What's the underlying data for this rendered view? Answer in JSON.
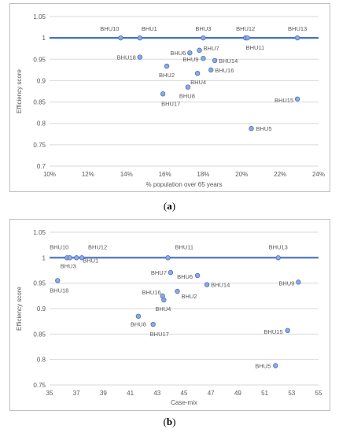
{
  "chart_data": [
    {
      "type": "scatter",
      "panel": "a",
      "xlabel": "% population over 65 years",
      "ylabel": "Efficiency score",
      "xlim": [
        10,
        24
      ],
      "ylim": [
        0.7,
        1.05
      ],
      "x_ticks": [
        "10%",
        "12%",
        "14%",
        "16%",
        "18%",
        "20%",
        "22%",
        "24%"
      ],
      "y_ticks": [
        "0.7",
        "0.75",
        "0.8",
        "0.85",
        "0.9",
        "0.95",
        "1",
        "1.05"
      ],
      "frontier": 1,
      "grid": "horizontal",
      "points": [
        {
          "label": "BHU10",
          "x": 13.7,
          "y": 1.0
        },
        {
          "label": "BHU1",
          "x": 14.7,
          "y": 1.0
        },
        {
          "label": "BHU3",
          "x": 18.0,
          "y": 1.0
        },
        {
          "label": "BHU12",
          "x": 20.2,
          "y": 1.0
        },
        {
          "label": "BHU11",
          "x": 20.3,
          "y": 1.0
        },
        {
          "label": "BHU13",
          "x": 22.9,
          "y": 1.0
        },
        {
          "label": "BHU18",
          "x": 14.7,
          "y": 0.955
        },
        {
          "label": "BHU6",
          "x": 17.3,
          "y": 0.965
        },
        {
          "label": "BHU7",
          "x": 17.8,
          "y": 0.971
        },
        {
          "label": "BHU9",
          "x": 18.0,
          "y": 0.952
        },
        {
          "label": "BHU14",
          "x": 18.6,
          "y": 0.947
        },
        {
          "label": "BHU2",
          "x": 16.1,
          "y": 0.934
        },
        {
          "label": "BHU16",
          "x": 18.4,
          "y": 0.925
        },
        {
          "label": "BHU4",
          "x": 17.7,
          "y": 0.917
        },
        {
          "label": "BHU8",
          "x": 17.2,
          "y": 0.885
        },
        {
          "label": "BHU17",
          "x": 15.9,
          "y": 0.869
        },
        {
          "label": "BHU15",
          "x": 22.9,
          "y": 0.857
        },
        {
          "label": "BHU5",
          "x": 20.5,
          "y": 0.788
        }
      ]
    },
    {
      "type": "scatter",
      "panel": "b",
      "xlabel": "Case-mix",
      "ylabel": "Efficiency score",
      "xlim": [
        35,
        55
      ],
      "ylim": [
        0.75,
        1.05
      ],
      "x_ticks": [
        "35",
        "37",
        "39",
        "41",
        "43",
        "45",
        "47",
        "49",
        "51",
        "53",
        "55"
      ],
      "y_ticks": [
        "0.75",
        "0.8",
        "0.85",
        "0.9",
        "0.95",
        "1",
        "1.05"
      ],
      "frontier": 1,
      "grid": "horizontal",
      "points": [
        {
          "label": "BHU10",
          "x": 36.3,
          "y": 1.0
        },
        {
          "label": "BHU3",
          "x": 36.5,
          "y": 1.0
        },
        {
          "label": "BHU1",
          "x": 37.0,
          "y": 1.0
        },
        {
          "label": "BHU12",
          "x": 37.4,
          "y": 1.0
        },
        {
          "label": "BHU11",
          "x": 43.8,
          "y": 1.0
        },
        {
          "label": "BHU13",
          "x": 52.0,
          "y": 1.0
        },
        {
          "label": "BHU18",
          "x": 35.6,
          "y": 0.955
        },
        {
          "label": "BHU7",
          "x": 44.0,
          "y": 0.971
        },
        {
          "label": "BHU6",
          "x": 46.0,
          "y": 0.965
        },
        {
          "label": "BHU9",
          "x": 53.5,
          "y": 0.952
        },
        {
          "label": "BHU14",
          "x": 46.7,
          "y": 0.947
        },
        {
          "label": "BHU2",
          "x": 44.5,
          "y": 0.934
        },
        {
          "label": "BHU16",
          "x": 43.4,
          "y": 0.925
        },
        {
          "label": "BHU4",
          "x": 43.5,
          "y": 0.917
        },
        {
          "label": "BHU8",
          "x": 41.6,
          "y": 0.885
        },
        {
          "label": "BHU17",
          "x": 42.7,
          "y": 0.869
        },
        {
          "label": "BHU15",
          "x": 52.7,
          "y": 0.857
        },
        {
          "label": "BHU5",
          "x": 51.8,
          "y": 0.788
        }
      ]
    }
  ],
  "captions": {
    "a": {
      "open": "(",
      "letter": "a",
      "close": ")"
    },
    "b": {
      "open": "(",
      "letter": "b",
      "close": ")"
    }
  },
  "colors": {
    "frontier": "#4472c4",
    "marker_fill": "#8faadc",
    "marker_stroke": "#4472c4",
    "grid": "#d9d9d9",
    "text": "#595959"
  }
}
